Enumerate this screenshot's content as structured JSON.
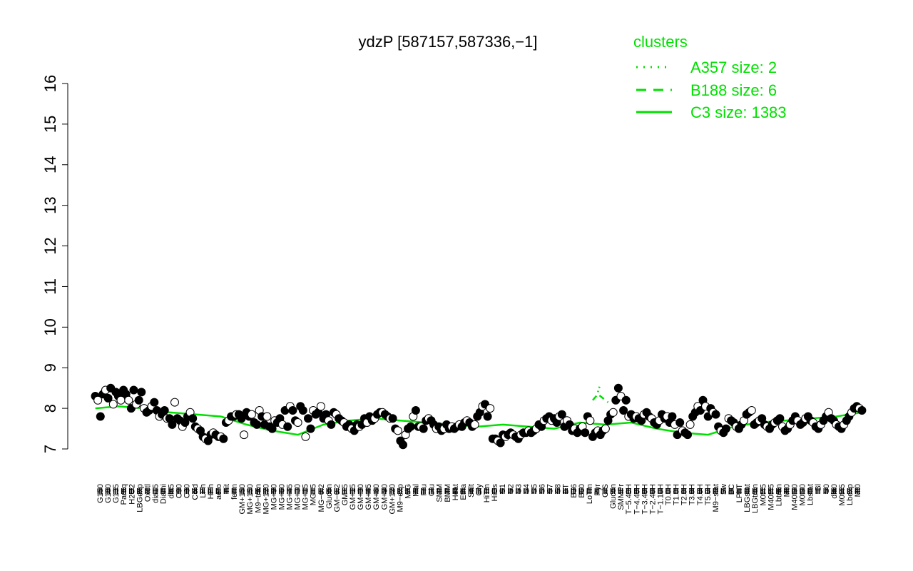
{
  "chart_data": {
    "type": "scatter",
    "title": "ydzP [587157,587336,−1]",
    "xlabel": "",
    "ylabel": "",
    "ylim": [
      7,
      16
    ],
    "yticks": [
      7,
      8,
      9,
      10,
      11,
      12,
      13,
      14,
      15,
      16
    ],
    "grid": false,
    "legend": {
      "title": "clusters",
      "placement": "top-right",
      "color": "#00e000",
      "entries": [
        {
          "label": "A357 size: 2",
          "style": "dotted"
        },
        {
          "label": "B188 size: 6",
          "style": "dashed"
        },
        {
          "label": "C3 size: 1383",
          "style": "solid"
        }
      ]
    },
    "x_tick_labels": [
      "G150",
      "G180",
      "G135",
      "Paraq",
      "H2O2",
      "LBGexp",
      "Oxctl",
      "dia15",
      "Diami",
      "dia5",
      "C90",
      "C30",
      "Cold",
      "LPh",
      "HPh",
      "aero",
      "nit",
      "ferm",
      "GM+150",
      "MG+150",
      "M9−tran",
      "MG+120",
      "MG+90",
      "MG+60",
      "MG+45",
      "MG+30",
      "MG+15",
      "MG+5",
      "MG−0.2",
      "Glucon",
      "GM−0.2",
      "GM+5",
      "GM+15",
      "GM+30",
      "GM+45",
      "GM+60",
      "GM+90",
      "GM+120",
      "M9−exp",
      "M/G",
      "Mal",
      "Fru",
      "Glu",
      "SMM",
      "BMM",
      "Heat",
      "Etha",
      "Salt",
      "Gly",
      "HiTm",
      "HiOs",
      "S1",
      "S2",
      "S3",
      "S4",
      "S5",
      "S6",
      "S7",
      "S8",
      "BT",
      "B36",
      "B60",
      "LoTm",
      "Pyr",
      "G/S",
      "Glucon",
      "SMMPr",
      "T−5.40H",
      "T−4.40H",
      "T−3.40H",
      "T−2.40H",
      "T−1.10H",
      "T0.0H",
      "T1.0H",
      "T2.0H",
      "T3.0H",
      "T4.0H",
      "T5.0H",
      "M9−stat",
      "Sw",
      "BC",
      "LPhT",
      "LBGstat",
      "LBGtran",
      "M0t45",
      "M40t45",
      "Lbtran",
      "Mt0",
      "M40t90",
      "M0t90",
      "Lbstat",
      "Bl",
      "S0",
      "dia0",
      "M0t45",
      "Lbexp",
      "Mt0"
    ],
    "series": [
      {
        "style": "points",
        "x": [
          1,
          2,
          3,
          4,
          5,
          6,
          7,
          8,
          9,
          10,
          11,
          12,
          13,
          14,
          15,
          16,
          17,
          18,
          19,
          20,
          21,
          22,
          23,
          24,
          25,
          26,
          27,
          28,
          29,
          30,
          31,
          32,
          33,
          34,
          35,
          36,
          37,
          38,
          39,
          40,
          41,
          42,
          43,
          44,
          45,
          46,
          47,
          48,
          49,
          50,
          51,
          52,
          53,
          54,
          55,
          56,
          57,
          58,
          59,
          60,
          61,
          62,
          63,
          64,
          65,
          66,
          67,
          68,
          69,
          70,
          71,
          72,
          73,
          74,
          75,
          76,
          77,
          78,
          79,
          80,
          81,
          82,
          83,
          84,
          85,
          86,
          87,
          88,
          89,
          90,
          91,
          92,
          93,
          94,
          95,
          96,
          97,
          98,
          99,
          100,
          101,
          102,
          103,
          104,
          105,
          106,
          107,
          108,
          109,
          110,
          111,
          112,
          113,
          114,
          115,
          116,
          117,
          118,
          119,
          120,
          121,
          122,
          123,
          124,
          125,
          126,
          127,
          128,
          129,
          130,
          131,
          132,
          133,
          134,
          135,
          136,
          137,
          138,
          139,
          140,
          141,
          142,
          143,
          144,
          145,
          146,
          147,
          148,
          149,
          150,
          151,
          152,
          153,
          154,
          155,
          156,
          157,
          158,
          159,
          160,
          161,
          162,
          163,
          164,
          165,
          166,
          167,
          168,
          169,
          170,
          171,
          172,
          173,
          174,
          175,
          176,
          177,
          178,
          179,
          180,
          181,
          182,
          183,
          184,
          185,
          186,
          187,
          188,
          189,
          190,
          191,
          192,
          193,
          194,
          195,
          196,
          197,
          198,
          199,
          200,
          201,
          202,
          203,
          204,
          205,
          206,
          207,
          208,
          209,
          210,
          211,
          212,
          213,
          214,
          215,
          216,
          217,
          218,
          219,
          220,
          221,
          222,
          223,
          224,
          225,
          226,
          227,
          228,
          229,
          230,
          231,
          232,
          233,
          234,
          235,
          236,
          237,
          238,
          239,
          240,
          241,
          242,
          243,
          244,
          245,
          246,
          247,
          248,
          249,
          250,
          251,
          252,
          253,
          254,
          255,
          256,
          257,
          258,
          259,
          260,
          261,
          262,
          263,
          264,
          265,
          266,
          267,
          268,
          269,
          270,
          271,
          272,
          273,
          274,
          275,
          276,
          277,
          278,
          279,
          280,
          281,
          282,
          283,
          284,
          285,
          286,
          287,
          288,
          289,
          290,
          291,
          292,
          293,
          294,
          295,
          296,
          297,
          298,
          299,
          300
        ],
        "y": [
          8.3,
          8.2,
          7.8,
          8.35,
          8.45,
          8.25,
          8.5,
          8.1,
          8.4,
          8.3,
          8.2,
          8.45,
          8.35,
          8.2,
          8.0,
          8.45,
          8.1,
          8.2,
          8.4,
          8.0,
          7.9,
          7.95,
          8.05,
          8.15,
          7.95,
          7.8,
          7.85,
          7.95,
          7.75,
          7.75,
          7.6,
          8.15,
          7.75,
          7.7,
          7.55,
          7.65,
          7.8,
          7.9,
          7.75,
          7.55,
          7.5,
          7.45,
          7.3,
          7.25,
          7.2,
          7.35,
          7.4,
          7.35,
          7.3,
          7.3,
          7.25,
          7.65,
          7.7,
          7.8,
          7.8,
          7.85,
          7.85,
          7.75,
          7.35,
          7.9,
          7.8,
          7.85,
          7.65,
          7.6,
          7.95,
          7.8,
          7.6,
          7.8,
          7.55,
          7.5,
          7.7,
          7.65,
          7.75,
          7.6,
          7.95,
          7.55,
          8.05,
          7.95,
          7.7,
          7.65,
          8.05,
          7.95,
          7.3,
          7.75,
          7.5,
          7.95,
          7.85,
          7.9,
          8.05,
          7.75,
          7.85,
          7.7,
          7.6,
          7.9,
          7.85,
          7.75,
          7.7,
          7.65,
          7.55,
          7.6,
          7.5,
          7.45,
          7.6,
          7.55,
          7.6,
          7.75,
          7.65,
          7.8,
          7.7,
          7.75,
          7.85,
          7.9,
          7.9,
          7.85,
          7.8,
          7.75,
          7.75,
          7.5,
          7.45,
          7.2,
          7.1,
          7.35,
          7.5,
          7.55,
          7.8,
          7.95,
          7.55,
          7.55,
          7.5,
          7.7,
          7.75,
          7.7,
          7.6,
          7.5,
          7.55,
          7.45,
          7.5,
          7.6,
          7.5,
          7.55,
          7.5,
          7.55,
          7.6,
          7.55,
          7.65,
          7.7,
          7.65,
          7.55,
          7.6,
          7.8,
          7.9,
          8.05,
          8.1,
          7.8,
          8.0,
          7.25,
          7.25,
          7.2,
          7.15,
          7.35,
          7.3,
          7.35,
          7.4,
          7.35,
          7.3,
          7.25,
          7.35,
          7.4,
          7.4,
          7.45,
          7.4,
          7.45,
          7.5,
          7.6,
          7.55,
          7.7,
          7.75,
          7.8,
          7.7,
          7.75,
          7.65,
          7.8,
          7.85,
          7.55,
          7.7,
          7.6,
          7.45,
          7.5,
          7.4,
          7.5,
          7.55,
          7.4,
          7.8,
          7.7,
          7.3,
          7.4,
          7.45,
          7.35,
          7.45,
          7.5,
          7.7,
          7.85,
          7.9,
          8.2,
          8.5,
          8.3,
          7.95,
          8.2,
          7.8,
          7.85,
          7.75,
          7.8,
          7.75,
          7.7,
          7.85,
          7.9,
          7.8,
          7.75,
          7.65,
          7.6,
          7.7,
          7.85,
          7.75,
          7.8,
          7.65,
          7.8,
          7.6,
          7.35,
          7.65,
          7.45,
          7.4,
          7.35,
          7.6,
          7.8,
          7.9,
          8.05,
          7.95,
          8.2,
          8.05,
          7.8,
          8.0,
          7.9,
          7.85,
          7.55,
          7.45,
          7.4,
          7.5,
          7.75,
          7.7,
          7.65,
          7.55,
          7.5,
          7.6,
          7.7,
          7.85,
          7.9,
          7.95,
          7.6,
          7.65,
          7.7,
          7.75,
          7.6,
          7.55,
          7.5,
          7.6,
          7.65,
          7.7,
          7.75,
          7.55,
          7.45,
          7.5,
          7.6,
          7.7,
          7.8,
          7.7,
          7.6,
          7.65,
          7.75,
          7.8,
          7.7,
          7.65,
          7.55,
          7.5,
          7.6,
          7.7,
          7.8,
          7.9,
          7.75,
          7.7,
          7.6,
          7.55,
          7.5,
          7.6,
          7.7,
          7.8,
          7.9,
          8.0,
          8.05,
          8.0,
          7.95
        ]
      },
      {
        "name": "C3 size: 1383",
        "style": "line-solid",
        "x": [
          1,
          10,
          20,
          30,
          40,
          50,
          60,
          70,
          80,
          90,
          100,
          110,
          120,
          130,
          140,
          150,
          160,
          170,
          180,
          190,
          200,
          210,
          220,
          230,
          240,
          250,
          260,
          270,
          280,
          290,
          300
        ],
        "y": [
          8.0,
          8.05,
          8.0,
          7.9,
          7.85,
          7.8,
          7.6,
          7.45,
          7.35,
          7.6,
          7.7,
          7.75,
          7.7,
          7.65,
          7.6,
          7.55,
          7.6,
          7.55,
          7.5,
          7.65,
          7.6,
          7.65,
          7.5,
          7.4,
          7.35,
          7.55,
          7.65,
          7.7,
          7.75,
          7.8,
          7.9
        ]
      },
      {
        "name": "B188 size: 6",
        "style": "line-dashed",
        "x": [
          195,
          197,
          199,
          201
        ],
        "y": [
          8.2,
          8.35,
          8.25,
          8.15
        ]
      },
      {
        "name": "A357 size: 2",
        "style": "line-dotted",
        "x": [
          197,
          198
        ],
        "y": [
          8.4,
          8.6
        ]
      }
    ]
  }
}
